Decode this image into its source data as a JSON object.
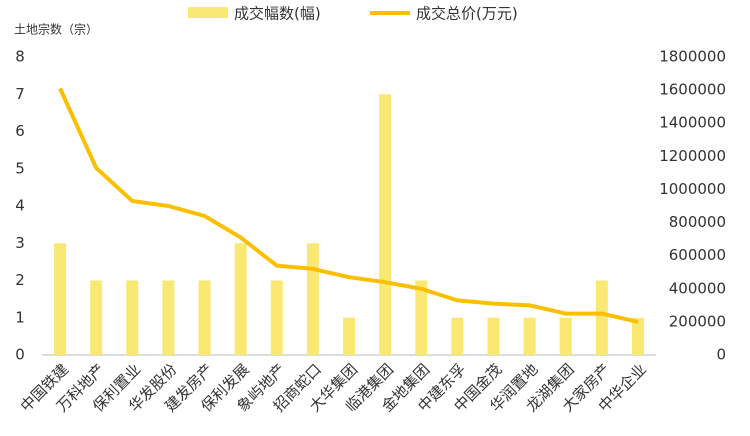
{
  "chart_data": {
    "type": "bar_line",
    "y_axis_title": "土地宗数（宗）",
    "categories": [
      "中国铁建",
      "万科地产",
      "保利置业",
      "华发股份",
      "建发房产",
      "保利发展",
      "象屿地产",
      "招商蛇口",
      "大华集团",
      "临港集团",
      "金地集团",
      "中建东孚",
      "中国金茂",
      "华润置地",
      "龙湖集团",
      "大家房产",
      "中华企业"
    ],
    "series": [
      {
        "name": "成交幅数(幅)",
        "type": "bar",
        "color": "#f9e872",
        "values": [
          3,
          2,
          2,
          2,
          2,
          3,
          2,
          3,
          1,
          7,
          2,
          1,
          1,
          1,
          1,
          2,
          1
        ]
      },
      {
        "name": "成交总价(万元)",
        "type": "line",
        "axis": "y2",
        "color": "#fbbf00",
        "values": [
          1610000,
          1130000,
          930000,
          900000,
          840000,
          710000,
          540000,
          520000,
          470000,
          440000,
          400000,
          330000,
          310000,
          300000,
          250000,
          250000,
          200000
        ]
      }
    ],
    "ylim": [
      0,
      8
    ],
    "yticks": [
      0,
      1,
      2,
      3,
      4,
      5,
      6,
      7,
      8
    ],
    "y2lim": [
      0,
      1800000
    ],
    "y2ticks": [
      0,
      200000,
      400000,
      600000,
      800000,
      1000000,
      1200000,
      1400000,
      1600000,
      1800000
    ]
  }
}
